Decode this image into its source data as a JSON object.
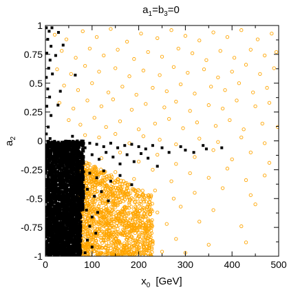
{
  "chart_data": {
    "type": "scatter",
    "title": "a1=b3=0",
    "title_parts": {
      "a": "a",
      "sub1": "1",
      "mid": "=b",
      "sub2": "3",
      "end": "=0"
    },
    "xlabel": "x0  [GeV]",
    "xlabel_parts": {
      "main": "x",
      "sub": "0",
      "unit": "[GeV]"
    },
    "ylabel": "a2",
    "ylabel_parts": {
      "main": "a",
      "sub": "2"
    },
    "xlim": [
      0,
      500
    ],
    "ylim": [
      -1,
      1
    ],
    "x_ticks": [
      0,
      100,
      200,
      300,
      400,
      500
    ],
    "x_tick_labels": [
      "0",
      "100",
      "200",
      "300",
      "400",
      "500"
    ],
    "y_ticks": [
      -1,
      -0.75,
      -0.5,
      -0.25,
      0,
      0.25,
      0.5,
      0.75,
      1
    ],
    "y_tick_labels": [
      "-1",
      "-0.75",
      "-0.5",
      "-0.25",
      "0",
      "0.25",
      "0.5",
      "0.75",
      "1"
    ],
    "grid": false,
    "series": [
      {
        "color": "#ffa500",
        "marker": "open-circle",
        "points": [
          [
            20,
            0.92
          ],
          [
            45,
            0.88
          ],
          [
            80,
            0.95
          ],
          [
            110,
            0.9
          ],
          [
            140,
            0.97
          ],
          [
            175,
            0.86
          ],
          [
            205,
            0.93
          ],
          [
            240,
            0.89
          ],
          [
            270,
            0.96
          ],
          [
            300,
            0.91
          ],
          [
            330,
            0.87
          ],
          [
            360,
            0.94
          ],
          [
            390,
            0.9
          ],
          [
            420,
            0.96
          ],
          [
            455,
            0.88
          ],
          [
            485,
            0.93
          ],
          [
            35,
            0.78
          ],
          [
            65,
            0.72
          ],
          [
            95,
            0.8
          ],
          [
            125,
            0.74
          ],
          [
            155,
            0.79
          ],
          [
            190,
            0.71
          ],
          [
            220,
            0.77
          ],
          [
            250,
            0.73
          ],
          [
            285,
            0.8
          ],
          [
            315,
            0.76
          ],
          [
            345,
            0.7
          ],
          [
            375,
            0.78
          ],
          [
            405,
            0.72
          ],
          [
            440,
            0.79
          ],
          [
            470,
            0.74
          ],
          [
            495,
            0.77
          ],
          [
            25,
            0.62
          ],
          [
            55,
            0.58
          ],
          [
            85,
            0.65
          ],
          [
            115,
            0.6
          ],
          [
            150,
            0.63
          ],
          [
            180,
            0.56
          ],
          [
            210,
            0.61
          ],
          [
            245,
            0.57
          ],
          [
            275,
            0.64
          ],
          [
            305,
            0.59
          ],
          [
            340,
            0.62
          ],
          [
            370,
            0.55
          ],
          [
            400,
            0.6
          ],
          [
            430,
            0.66
          ],
          [
            460,
            0.58
          ],
          [
            490,
            0.63
          ],
          [
            40,
            0.48
          ],
          [
            70,
            0.44
          ],
          [
            100,
            0.5
          ],
          [
            135,
            0.42
          ],
          [
            165,
            0.47
          ],
          [
            195,
            0.4
          ],
          [
            230,
            0.46
          ],
          [
            260,
            0.43
          ],
          [
            290,
            0.49
          ],
          [
            320,
            0.41
          ],
          [
            355,
            0.47
          ],
          [
            385,
            0.44
          ],
          [
            415,
            0.5
          ],
          [
            445,
            0.42
          ],
          [
            475,
            0.46
          ],
          [
            30,
            0.33
          ],
          [
            60,
            0.28
          ],
          [
            90,
            0.35
          ],
          [
            120,
            0.3
          ],
          [
            145,
            0.36
          ],
          [
            185,
            0.27
          ],
          [
            215,
            0.32
          ],
          [
            255,
            0.29
          ],
          [
            280,
            0.34
          ],
          [
            310,
            0.26
          ],
          [
            350,
            0.31
          ],
          [
            380,
            0.28
          ],
          [
            410,
            0.35
          ],
          [
            450,
            0.3
          ],
          [
            480,
            0.33
          ],
          [
            50,
            0.18
          ],
          [
            75,
            0.14
          ],
          [
            105,
            0.2
          ],
          [
            130,
            0.12
          ],
          [
            160,
            0.17
          ],
          [
            200,
            0.1
          ],
          [
            235,
            0.15
          ],
          [
            265,
            0.19
          ],
          [
            295,
            0.11
          ],
          [
            325,
            0.16
          ],
          [
            365,
            0.13
          ],
          [
            395,
            0.18
          ],
          [
            425,
            0.1
          ],
          [
            465,
            0.15
          ],
          [
            498,
            0.12
          ],
          [
            85,
            0.05
          ],
          [
            115,
            0.03
          ],
          [
            150,
            0.06
          ],
          [
            180,
            -0.02
          ],
          [
            210,
            0.04
          ],
          [
            245,
            0.01
          ],
          [
            280,
            -0.03
          ],
          [
            330,
            0.02
          ],
          [
            370,
            -0.01
          ],
          [
            420,
            0.03
          ],
          [
            470,
            -0.02
          ],
          [
            120,
            -0.15
          ],
          [
            160,
            -0.1
          ],
          [
            200,
            -0.18
          ],
          [
            240,
            -0.12
          ],
          [
            280,
            -0.2
          ],
          [
            320,
            -0.14
          ],
          [
            360,
            -0.08
          ],
          [
            400,
            -0.16
          ],
          [
            440,
            -0.1
          ],
          [
            480,
            -0.19
          ],
          [
            110,
            -0.3
          ],
          [
            150,
            -0.27
          ],
          [
            190,
            -0.33
          ],
          [
            230,
            -0.25
          ],
          [
            270,
            -0.35
          ],
          [
            310,
            -0.28
          ],
          [
            350,
            -0.32
          ],
          [
            390,
            -0.24
          ],
          [
            430,
            -0.34
          ],
          [
            470,
            -0.3
          ],
          [
            95,
            -0.42
          ],
          [
            130,
            -0.45
          ],
          [
            165,
            -0.4
          ],
          [
            200,
            -0.48
          ],
          [
            235,
            -0.43
          ],
          [
            275,
            -0.5
          ],
          [
            320,
            -0.45
          ],
          [
            380,
            -0.41
          ],
          [
            440,
            -0.47
          ],
          [
            85,
            -0.55
          ],
          [
            115,
            -0.6
          ],
          [
            145,
            -0.52
          ],
          [
            175,
            -0.58
          ],
          [
            205,
            -0.55
          ],
          [
            240,
            -0.62
          ],
          [
            290,
            -0.57
          ],
          [
            360,
            -0.6
          ],
          [
            450,
            -0.55
          ],
          [
            80,
            -0.68
          ],
          [
            105,
            -0.72
          ],
          [
            130,
            -0.65
          ],
          [
            160,
            -0.7
          ],
          [
            190,
            -0.75
          ],
          [
            220,
            -0.68
          ],
          [
            260,
            -0.72
          ],
          [
            330,
            -0.7
          ],
          [
            420,
            -0.74
          ],
          [
            75,
            -0.82
          ],
          [
            100,
            -0.88
          ],
          [
            125,
            -0.8
          ],
          [
            150,
            -0.85
          ],
          [
            175,
            -0.9
          ],
          [
            200,
            -0.83
          ],
          [
            230,
            -0.87
          ],
          [
            280,
            -0.85
          ],
          [
            350,
            -0.9
          ],
          [
            430,
            -0.88
          ],
          [
            90,
            -0.95
          ],
          [
            120,
            -0.97
          ],
          [
            140,
            -0.93
          ],
          [
            165,
            -0.98
          ],
          [
            190,
            -0.95
          ],
          [
            215,
            -0.99
          ],
          [
            250,
            -0.96
          ],
          [
            300,
            -0.97
          ]
        ]
      },
      {
        "color": "#000000",
        "marker": "filled-square",
        "points": [
          [
            2,
            0.98
          ],
          [
            8,
            0.95
          ],
          [
            14,
            0.98
          ],
          [
            28,
            0.94
          ],
          [
            5,
            0.88
          ],
          [
            12,
            0.82
          ],
          [
            3,
            0.76
          ],
          [
            10,
            0.7
          ],
          [
            7,
            0.63
          ],
          [
            2,
            0.55
          ],
          [
            15,
            0.58
          ],
          [
            5,
            0.45
          ],
          [
            9,
            0.38
          ],
          [
            3,
            0.3
          ],
          [
            12,
            0.22
          ],
          [
            6,
            0.12
          ],
          [
            2,
            0.06
          ],
          [
            10,
            0.02
          ],
          [
            38,
            0.83
          ],
          [
            22,
            0.74
          ],
          [
            64,
            0.57
          ],
          [
            32,
            0.43
          ],
          [
            27,
            0.31
          ],
          [
            58,
            0.04
          ],
          [
            5,
            -0.05
          ],
          [
            15,
            -0.02
          ],
          [
            25,
            -0.06
          ],
          [
            35,
            -0.03
          ],
          [
            45,
            -0.04
          ],
          [
            55,
            -0.02
          ],
          [
            65,
            -0.05
          ],
          [
            75,
            -0.03
          ],
          [
            85,
            -0.06
          ],
          [
            95,
            -0.02
          ],
          [
            110,
            -0.03
          ],
          [
            125,
            -0.05
          ],
          [
            140,
            -0.02
          ],
          [
            155,
            -0.06
          ],
          [
            170,
            -0.04
          ],
          [
            185,
            -0.03
          ],
          [
            200,
            -0.05
          ],
          [
            215,
            -0.07
          ],
          [
            230,
            -0.04
          ],
          [
            250,
            -0.06
          ],
          [
            265,
            -0.1
          ],
          [
            290,
            -0.05
          ],
          [
            300,
            -0.08
          ],
          [
            318,
            -0.1
          ],
          [
            338,
            -0.04
          ],
          [
            345,
            -0.07
          ],
          [
            378,
            -0.06
          ],
          [
            100,
            -0.12
          ],
          [
            115,
            -0.16
          ],
          [
            130,
            -0.1
          ],
          [
            145,
            -0.14
          ],
          [
            160,
            -0.2
          ],
          [
            175,
            -0.12
          ],
          [
            190,
            -0.18
          ],
          [
            205,
            -0.11
          ],
          [
            220,
            -0.15
          ],
          [
            240,
            -0.22
          ],
          [
            95,
            -0.28
          ],
          [
            110,
            -0.32
          ],
          [
            125,
            -0.26
          ],
          [
            140,
            -0.35
          ],
          [
            160,
            -0.3
          ],
          [
            185,
            -0.38
          ],
          [
            90,
            -0.42
          ],
          [
            105,
            -0.48
          ],
          [
            120,
            -0.44
          ],
          [
            135,
            -0.52
          ],
          [
            88,
            -0.6
          ],
          [
            100,
            -0.66
          ],
          [
            112,
            -0.62
          ],
          [
            95,
            -0.74
          ],
          [
            108,
            -0.8
          ],
          [
            90,
            -0.86
          ],
          [
            100,
            -0.92
          ],
          [
            85,
            -0.97
          ]
        ],
        "dense_region": {
          "x_min": 0,
          "x_max": 82,
          "y_min": -1,
          "y_max": 0
        }
      }
    ]
  }
}
